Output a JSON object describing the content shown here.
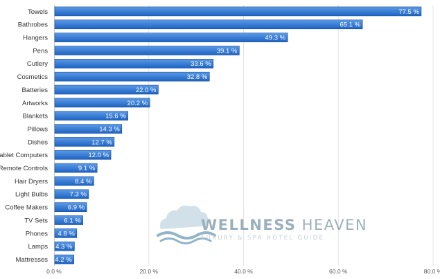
{
  "chart_data": {
    "type": "bar",
    "orientation": "horizontal",
    "categories": [
      "Towels",
      "Bathrobes",
      "Hangers",
      "Pens",
      "Cutlery",
      "Cosmetics",
      "Batteries",
      "Artworks",
      "Blankets",
      "Pillows",
      "Dishes",
      "Tablet Computers",
      "Remote Controls",
      "Hair Dryers",
      "Light Bulbs",
      "Coffee Makers",
      "TV Sets",
      "Phones",
      "Lamps",
      "Mattresses"
    ],
    "values": [
      77.5,
      65.1,
      49.3,
      39.1,
      33.6,
      32.8,
      22.0,
      20.2,
      15.6,
      14.3,
      12.7,
      12.0,
      9.1,
      8.4,
      7.3,
      6.9,
      6.1,
      4.8,
      4.3,
      4.2
    ],
    "value_labels": [
      "77.5 %",
      "65.1 %",
      "49.3 %",
      "39.1 %",
      "33.6 %",
      "32.8 %",
      "22.0 %",
      "20.2 %",
      "15.6 %",
      "14.3 %",
      "12.7 %",
      "12.0 %",
      "9.1 %",
      "8.4 %",
      "7.3 %",
      "6.9 %",
      "6.1 %",
      "4.8 %",
      "4.3 %",
      "4.2 %"
    ],
    "xlim": [
      0,
      80
    ],
    "x_ticks": [
      0,
      20,
      40,
      60,
      80
    ],
    "x_tick_labels": [
      "0.0 %",
      "20.0 %",
      "40.0 %",
      "60.0 %",
      "80.0 %"
    ],
    "grid": true,
    "title": "",
    "xlabel": "",
    "ylabel": ""
  },
  "watermark": {
    "title_a": "WELLNESS",
    "title_b": " HEAVEN",
    "subtitle": "LUXURY & SPA HOTEL GUIDE",
    "logo_icon": "cloud-wave-logo-icon"
  },
  "colors": {
    "bar_top": "#5b9ae6",
    "bar_bottom": "#1e63c2",
    "bar_edge": "#174f9c",
    "grid": "#e3e3e3",
    "watermark_cloud": "#c9dbe6",
    "watermark_wave": "#7ea7bf"
  }
}
